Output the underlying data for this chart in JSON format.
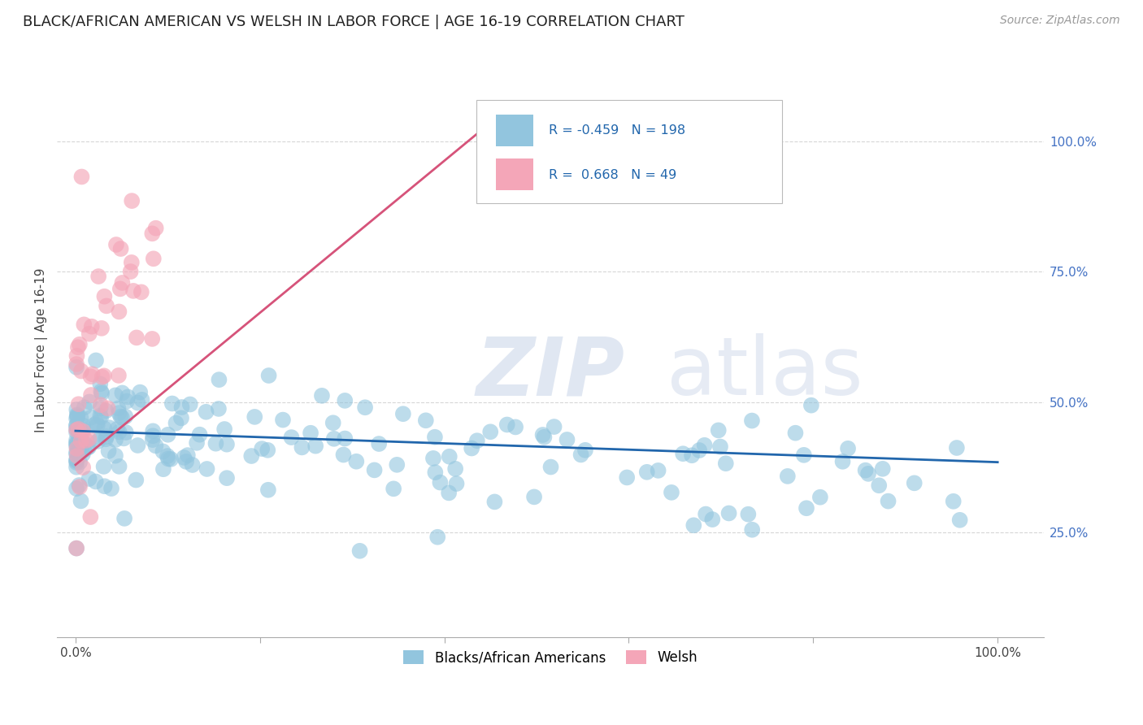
{
  "title": "BLACK/AFRICAN AMERICAN VS WELSH IN LABOR FORCE | AGE 16-19 CORRELATION CHART",
  "source": "Source: ZipAtlas.com",
  "ylabel": "In Labor Force | Age 16-19",
  "x_tick_labels": [
    "0.0%",
    "",
    "",
    "",
    "",
    "100.0%"
  ],
  "x_tick_positions": [
    0.0,
    0.2,
    0.4,
    0.6,
    0.8,
    1.0
  ],
  "y_tick_labels_right": [
    "25.0%",
    "50.0%",
    "75.0%",
    "100.0%"
  ],
  "y_tick_positions_right": [
    0.25,
    0.5,
    0.75,
    1.0
  ],
  "legend_blue_label": "Blacks/African Americans",
  "legend_pink_label": "Welsh",
  "blue_R": -0.459,
  "blue_N": 198,
  "pink_R": 0.668,
  "pink_N": 49,
  "blue_color": "#92c5de",
  "pink_color": "#f4a6b8",
  "blue_line_color": "#2166ac",
  "pink_line_color": "#d6537a",
  "background_color": "#ffffff",
  "grid_color": "#cccccc",
  "title_fontsize": 13,
  "label_fontsize": 11,
  "tick_fontsize": 11,
  "legend_fontsize": 12,
  "xlim": [
    -0.02,
    1.05
  ],
  "ylim": [
    0.05,
    1.15
  ],
  "blue_line_x0": 0.0,
  "blue_line_x1": 1.0,
  "blue_line_y0": 0.445,
  "blue_line_y1": 0.385,
  "pink_line_x0": 0.0,
  "pink_line_x1": 0.46,
  "pink_line_y0": 0.38,
  "pink_line_y1": 1.05
}
